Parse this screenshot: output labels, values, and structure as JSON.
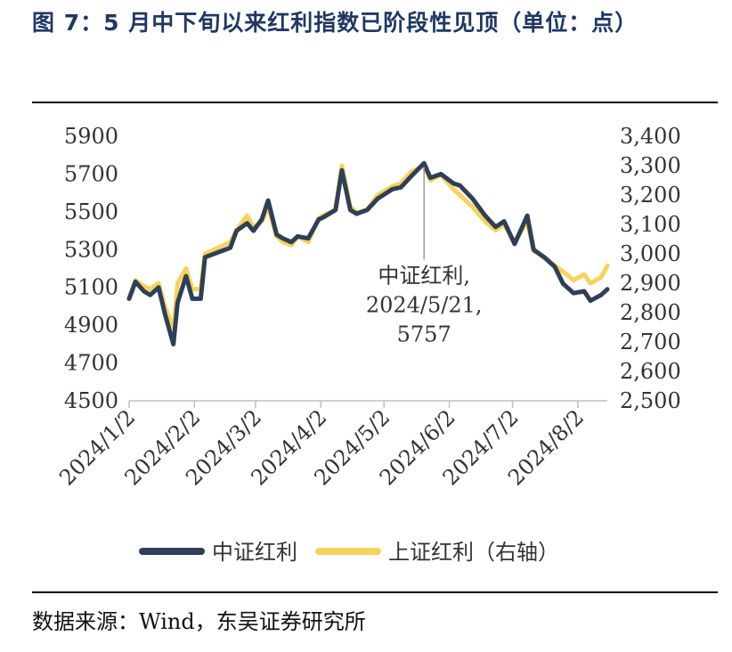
{
  "title": "图 7：5 月中下旬以来红利指数已阶段性见顶（单位：点）",
  "source": "数据来源：Wind，东吴证券研究所",
  "chart_data": {
    "type": "line",
    "title": "图 7：5 月中下旬以来红利指数已阶段性见顶（单位：点）",
    "x_ticks": [
      "2024/1/2",
      "2024/2/2",
      "2024/3/2",
      "2024/4/2",
      "2024/5/2",
      "2024/6/2",
      "2024/7/2",
      "2024/8/2"
    ],
    "left_axis": {
      "ticks": [
        "5900",
        "5700",
        "5500",
        "5300",
        "5100",
        "4900",
        "4700",
        "4500"
      ],
      "ylim": [
        4500,
        5900
      ]
    },
    "right_axis": {
      "ticks": [
        "3,400",
        "3,300",
        "3,200",
        "3,100",
        "3,000",
        "2,900",
        "2,800",
        "2,700",
        "2,600",
        "2,500"
      ],
      "ylim": [
        2500,
        3400
      ]
    },
    "grid": false,
    "legend_position": "bottom",
    "series": [
      {
        "name": "中证红利",
        "axis": "left",
        "color": "#2e3f57",
        "x": [
          "2024-01-02",
          "2024-01-05",
          "2024-01-09",
          "2024-01-12",
          "2024-01-16",
          "2024-01-19",
          "2024-01-23",
          "2024-01-25",
          "2024-01-29",
          "2024-02-01",
          "2024-02-05",
          "2024-02-07",
          "2024-02-19",
          "2024-02-22",
          "2024-02-27",
          "2024-03-01",
          "2024-03-05",
          "2024-03-08",
          "2024-03-12",
          "2024-03-15",
          "2024-03-19",
          "2024-03-22",
          "2024-03-27",
          "2024-04-01",
          "2024-04-03",
          "2024-04-09",
          "2024-04-12",
          "2024-04-16",
          "2024-04-19",
          "2024-04-24",
          "2024-04-29",
          "2024-05-06",
          "2024-05-10",
          "2024-05-15",
          "2024-05-21",
          "2024-05-24",
          "2024-05-29",
          "2024-06-04",
          "2024-06-07",
          "2024-06-13",
          "2024-06-19",
          "2024-06-24",
          "2024-06-28",
          "2024-07-03",
          "2024-07-09",
          "2024-07-12",
          "2024-07-17",
          "2024-07-22",
          "2024-07-26",
          "2024-07-31",
          "2024-08-05",
          "2024-08-08",
          "2024-08-13",
          "2024-08-16"
        ],
        "values": [
          5040,
          5130,
          5080,
          5060,
          5100,
          4960,
          4800,
          5020,
          5160,
          5040,
          5040,
          5260,
          5310,
          5400,
          5440,
          5400,
          5460,
          5560,
          5380,
          5360,
          5340,
          5370,
          5360,
          5460,
          5470,
          5510,
          5720,
          5510,
          5490,
          5510,
          5570,
          5620,
          5630,
          5690,
          5757,
          5680,
          5700,
          5650,
          5640,
          5570,
          5480,
          5420,
          5450,
          5330,
          5480,
          5300,
          5260,
          5210,
          5120,
          5070,
          5080,
          5030,
          5060,
          5090
        ]
      },
      {
        "name": "上证红利（右轴）",
        "axis": "right",
        "color": "#f7d35c",
        "x": [
          "2024-01-02",
          "2024-01-05",
          "2024-01-09",
          "2024-01-12",
          "2024-01-16",
          "2024-01-19",
          "2024-01-23",
          "2024-01-25",
          "2024-01-29",
          "2024-02-01",
          "2024-02-05",
          "2024-02-07",
          "2024-02-19",
          "2024-02-22",
          "2024-02-27",
          "2024-03-01",
          "2024-03-05",
          "2024-03-08",
          "2024-03-12",
          "2024-03-15",
          "2024-03-19",
          "2024-03-22",
          "2024-03-27",
          "2024-04-01",
          "2024-04-03",
          "2024-04-09",
          "2024-04-12",
          "2024-04-16",
          "2024-04-19",
          "2024-04-24",
          "2024-04-29",
          "2024-05-06",
          "2024-05-10",
          "2024-05-15",
          "2024-05-21",
          "2024-05-24",
          "2024-05-29",
          "2024-06-04",
          "2024-06-07",
          "2024-06-13",
          "2024-06-19",
          "2024-06-24",
          "2024-06-28",
          "2024-07-03",
          "2024-07-09",
          "2024-07-12",
          "2024-07-17",
          "2024-07-22",
          "2024-07-26",
          "2024-07-31",
          "2024-08-05",
          "2024-08-08",
          "2024-08-13",
          "2024-08-16"
        ],
        "values": [
          2850,
          2910,
          2890,
          2880,
          2900,
          2820,
          2750,
          2900,
          2950,
          2880,
          2880,
          3000,
          3040,
          3080,
          3130,
          3090,
          3110,
          3160,
          3060,
          3040,
          3030,
          3060,
          3040,
          3120,
          3130,
          3150,
          3300,
          3160,
          3140,
          3150,
          3200,
          3230,
          3240,
          3280,
          3300,
          3250,
          3270,
          3220,
          3200,
          3160,
          3110,
          3080,
          3100,
          3040,
          3110,
          3010,
          2990,
          2960,
          2940,
          2910,
          2930,
          2900,
          2920,
          2960
        ]
      }
    ],
    "annotation": {
      "lines": [
        "中证红利,",
        "2024/5/21,",
        "5757"
      ],
      "x": "2024-05-21",
      "value": 5757
    }
  }
}
